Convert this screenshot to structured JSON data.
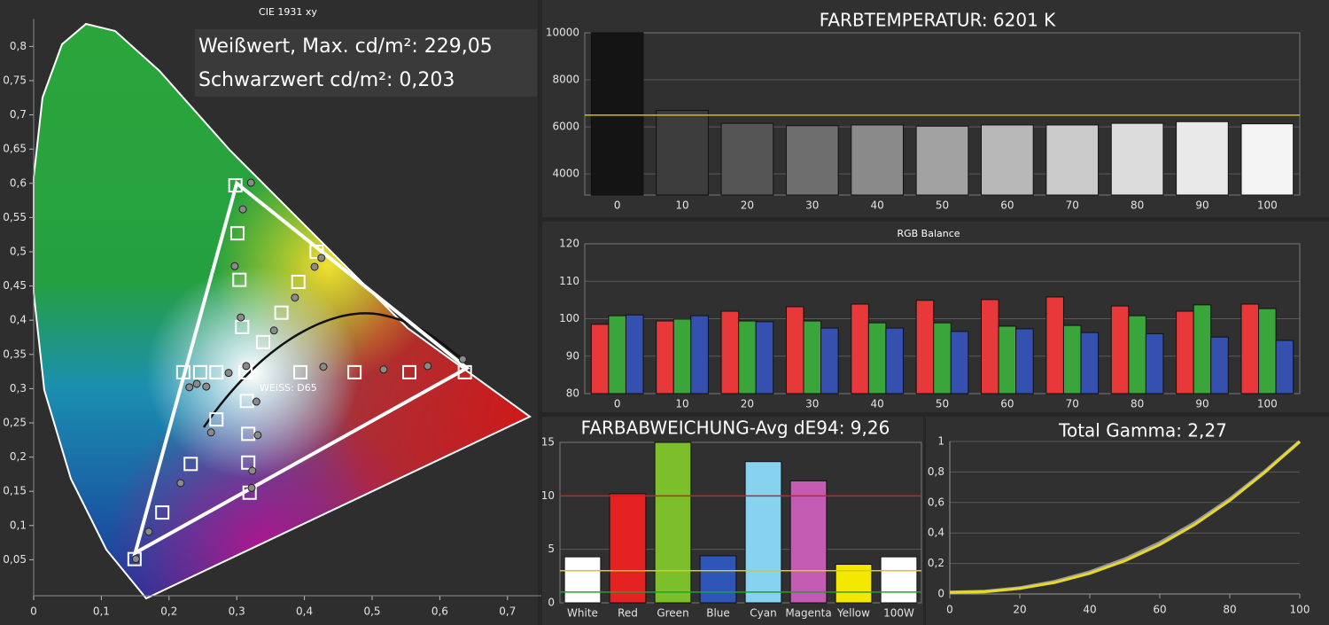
{
  "chart_data": [
    {
      "type": "scatter",
      "title": "CIE 1931 xy",
      "annotations": [
        "Weißwert, Max. cd/m²: 229,05",
        "Schwarzwert cd/m²: 0,203",
        "WEISS: D65"
      ],
      "xlim": [
        0,
        0.75
      ],
      "ylim": [
        0,
        0.84
      ],
      "xticks": [
        0,
        {
          "value": 0.1,
          "label": "0,1"
        },
        {
          "value": 0.2,
          "label": "0,2"
        },
        {
          "value": 0.3,
          "label": "0,3"
        },
        {
          "value": 0.4,
          "label": "0,4"
        },
        {
          "value": 0.5,
          "label": "0,5"
        },
        {
          "value": 0.6,
          "label": "0,6"
        },
        {
          "value": 0.7,
          "label": "0,7"
        }
      ],
      "yticks": [
        {
          "value": 0.05,
          "label": "0,05"
        },
        {
          "value": 0.1,
          "label": "0,1"
        },
        {
          "value": 0.15,
          "label": "0,15"
        },
        {
          "value": 0.2,
          "label": "0,2"
        },
        {
          "value": 0.25,
          "label": "0,25"
        },
        {
          "value": 0.3,
          "label": "0,3"
        },
        {
          "value": 0.35,
          "label": "0,35"
        },
        {
          "value": 0.4,
          "label": "0,4"
        },
        {
          "value": 0.45,
          "label": "0,45"
        },
        {
          "value": 0.5,
          "label": "0,5"
        },
        {
          "value": 0.55,
          "label": "0,55"
        },
        {
          "value": 0.6,
          "label": "0,6"
        },
        {
          "value": 0.65,
          "label": "0,65"
        },
        {
          "value": 0.7,
          "label": "0,7"
        },
        {
          "value": 0.75,
          "label": "0,75"
        },
        {
          "value": 0.8,
          "label": "0,8"
        }
      ],
      "gamut": {
        "x": [
          0.64,
          0.3,
          0.15
        ],
        "y": [
          0.33,
          0.6,
          0.06
        ],
        "color": "#ffffff"
      },
      "targets": {
        "color": "#ffffff",
        "x": [
          0.313,
          0.394,
          0.474,
          0.555,
          0.637,
          0.308,
          0.304,
          0.301,
          0.298,
          0.27,
          0.232,
          0.19,
          0.149,
          0.221,
          0.246,
          0.27,
          0.315,
          0.317,
          0.317,
          0.319,
          0.339,
          0.366,
          0.391,
          0.418
        ],
        "y": [
          0.324,
          0.324,
          0.324,
          0.324,
          0.324,
          0.39,
          0.459,
          0.527,
          0.597,
          0.255,
          0.19,
          0.119,
          0.051,
          0.324,
          0.324,
          0.324,
          0.282,
          0.234,
          0.192,
          0.148,
          0.368,
          0.411,
          0.456,
          0.5
        ]
      },
      "measured": {
        "color": "#8a8a8a",
        "x": [
          0.321,
          0.309,
          0.297,
          0.306,
          0.314,
          0.288,
          0.255,
          0.241,
          0.23,
          0.262,
          0.217,
          0.17,
          0.151,
          0.329,
          0.331,
          0.323,
          0.322,
          0.355,
          0.386,
          0.415,
          0.425,
          0.428,
          0.517,
          0.582,
          0.634
        ],
        "y": [
          0.601,
          0.562,
          0.479,
          0.404,
          0.333,
          0.323,
          0.303,
          0.307,
          0.302,
          0.236,
          0.162,
          0.091,
          0.051,
          0.281,
          0.232,
          0.18,
          0.155,
          0.385,
          0.433,
          0.478,
          0.491,
          0.332,
          0.328,
          0.333,
          0.343
        ]
      }
    },
    {
      "type": "bar",
      "title": "FARBTEMPERATUR: 6201 K",
      "categories": [
        "0",
        "10",
        "20",
        "30",
        "40",
        "50",
        "60",
        "70",
        "80",
        "90",
        "100"
      ],
      "values": [
        10000,
        6700,
        6150,
        6050,
        6080,
        6030,
        6080,
        6080,
        6150,
        6220,
        6130
      ],
      "colors": [
        "#141414",
        "#3c3c3c",
        "#555555",
        "#6e6e6e",
        "#8a8a8a",
        "#a2a2a2",
        "#b8b8b8",
        "#cbcbcb",
        "#dcdcdc",
        "#e9e9e9",
        "#f4f4f4"
      ],
      "ylim": [
        3100,
        10000
      ],
      "yticks": [
        4000,
        6000,
        8000,
        10000
      ],
      "grid": true,
      "reference_lines": [
        {
          "value": 6500,
          "color": "#d8b81c"
        }
      ]
    },
    {
      "type": "bar",
      "title": "RGB Balance",
      "categories": [
        "0",
        "10",
        "20",
        "30",
        "40",
        "50",
        "60",
        "70",
        "80",
        "90",
        "100"
      ],
      "series": [
        {
          "color": "#e8393a",
          "values": [
            98.5,
            99.4,
            102,
            103.2,
            103.9,
            104.9,
            105.1,
            105.8,
            103.4,
            102,
            103.9
          ]
        },
        {
          "color": "#3aa53a",
          "values": [
            100.8,
            99.9,
            99.4,
            99.4,
            98.9,
            98.9,
            98,
            98.2,
            100.8,
            103.7,
            102.7
          ]
        },
        {
          "color": "#3650b0",
          "values": [
            101,
            100.8,
            99.2,
            97.5,
            97.5,
            96.6,
            97.3,
            96.3,
            96,
            95.1,
            94.2
          ]
        }
      ],
      "ylim": [
        80,
        120
      ],
      "yticks": [
        80,
        90,
        100,
        110,
        120
      ],
      "grid": true
    },
    {
      "type": "bar",
      "title": "FARBABWEICHUNG-Avg dE94: 9,26",
      "categories": [
        "White",
        "Red",
        "Green",
        "Blue",
        "Cyan",
        "Magenta",
        "Yellow",
        "100W"
      ],
      "values": [
        4.3,
        10.2,
        15,
        4.4,
        13.2,
        11.4,
        3.6,
        4.3
      ],
      "colors": [
        "#ffffff",
        "#e52222",
        "#7cbf2a",
        "#2e56b8",
        "#86d2ef",
        "#c35bb2",
        "#f5e800",
        "#ffffff"
      ],
      "ylim": [
        0,
        15
      ],
      "yticks": [
        0,
        5,
        10,
        15
      ],
      "grid": true,
      "reference_lines": [
        {
          "value": 10,
          "color": "#d02020"
        },
        {
          "value": 3,
          "color": "#d8c820"
        },
        {
          "value": 1,
          "color": "#20a030"
        }
      ]
    },
    {
      "type": "line",
      "title": "Total Gamma: 2,27",
      "x": [
        0,
        10,
        20,
        30,
        40,
        50,
        60,
        70,
        80,
        90,
        100
      ],
      "series": [
        {
          "color": "#9a9a9a",
          "values": [
            0.01,
            0.016,
            0.039,
            0.081,
            0.143,
            0.228,
            0.335,
            0.466,
            0.622,
            0.803,
            1
          ]
        },
        {
          "color": "#e8d82a",
          "values": [
            0.01,
            0.015,
            0.036,
            0.075,
            0.135,
            0.217,
            0.323,
            0.455,
            0.613,
            0.797,
            1
          ]
        }
      ],
      "xlim": [
        0,
        100
      ],
      "ylim": [
        0,
        1
      ],
      "xticks": [
        0,
        20,
        40,
        60,
        80,
        100
      ],
      "yticks": [
        0,
        {
          "value": 0.2,
          "label": "0,2"
        },
        {
          "value": 0.4,
          "label": "0,4"
        },
        {
          "value": 0.6,
          "label": "0,6"
        },
        {
          "value": 0.8,
          "label": "0,8"
        },
        1
      ],
      "grid": true
    }
  ]
}
